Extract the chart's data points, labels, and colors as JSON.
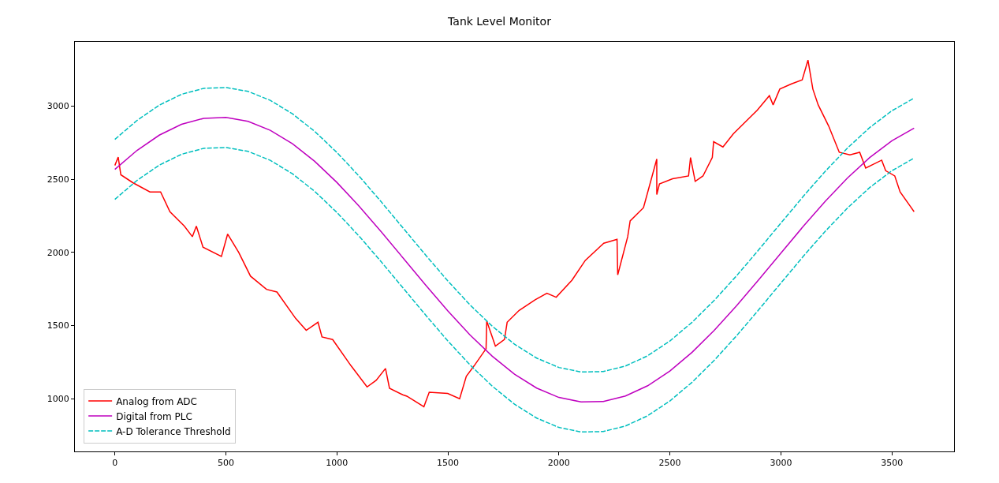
{
  "chart_data": {
    "type": "line",
    "title": "Tank Level Monitor",
    "xlim": [
      -180,
      3780
    ],
    "ylim": [
      640,
      3440
    ],
    "xticks": [
      0,
      500,
      1000,
      1500,
      2000,
      2500,
      3000,
      3500
    ],
    "yticks": [
      1000,
      1500,
      2000,
      2500,
      3000
    ],
    "grid": false,
    "legend": "bottom left",
    "marker": "none",
    "series": [
      {
        "name": "Analog from ADC",
        "color": "#ff0000",
        "line_style": "solid",
        "x": [
          0,
          15,
          27,
          81,
          158,
          206,
          248,
          313,
          349,
          367,
          397,
          480,
          508,
          558,
          611,
          683,
          730,
          814,
          862,
          915,
          933,
          981,
          1064,
          1136,
          1177,
          1219,
          1237,
          1297,
          1315,
          1392,
          1416,
          1499,
          1553,
          1583,
          1618,
          1672,
          1675,
          1714,
          1755,
          1767,
          1821,
          1893,
          1946,
          1988,
          2059,
          2119,
          2202,
          2262,
          2265,
          2310,
          2321,
          2381,
          2441,
          2441,
          2453,
          2512,
          2584,
          2593,
          2614,
          2649,
          2691,
          2697,
          2739,
          2786,
          2858,
          2894,
          2948,
          2965,
          2995,
          3048,
          3096,
          3122,
          3144,
          3168,
          3215,
          3263,
          3311,
          3355,
          3382,
          3454,
          3472,
          3513,
          3537,
          3579,
          3600
        ],
        "values": [
          2595,
          2652,
          2531,
          2477,
          2414,
          2414,
          2279,
          2180,
          2108,
          2180,
          2036,
          1973,
          2126,
          2000,
          1838,
          1748,
          1730,
          1550,
          1468,
          1523,
          1423,
          1405,
          1225,
          1081,
          1126,
          1207,
          1072,
          1027,
          1018,
          946,
          1045,
          1036,
          1000,
          1153,
          1225,
          1342,
          1531,
          1360,
          1405,
          1523,
          1604,
          1676,
          1721,
          1694,
          1811,
          1946,
          2063,
          2090,
          1847,
          2108,
          2216,
          2306,
          2639,
          2396,
          2469,
          2504,
          2523,
          2649,
          2486,
          2523,
          2649,
          2757,
          2721,
          2811,
          2919,
          2973,
          3072,
          3009,
          3117,
          3153,
          3180,
          3315,
          3117,
          3009,
          2865,
          2685,
          2667,
          2685,
          2577,
          2631,
          2559,
          2523,
          2414,
          2324,
          2279
        ]
      },
      {
        "name": "Digital from PLC",
        "color": "#bf00bf",
        "line_style": "solid",
        "x": [
          0,
          100,
          200,
          300,
          400,
          500,
          600,
          700,
          800,
          900,
          1000,
          1100,
          1200,
          1300,
          1400,
          1500,
          1600,
          1700,
          1800,
          1900,
          2000,
          2100,
          2200,
          2300,
          2400,
          2500,
          2600,
          2700,
          2800,
          2900,
          3000,
          3100,
          3200,
          3300,
          3400,
          3500,
          3600
        ],
        "values": [
          2568,
          2698,
          2802,
          2876,
          2917,
          2923,
          2896,
          2835,
          2743,
          2623,
          2479,
          2317,
          2141,
          1959,
          1777,
          1600,
          1436,
          1291,
          1168,
          1073,
          1009,
          978,
          981,
          1019,
          1089,
          1190,
          1318,
          1468,
          1635,
          1813,
          1996,
          2177,
          2350,
          2509,
          2649,
          2764,
          2850
        ]
      },
      {
        "name": "A-D Tolerance Threshold",
        "color": "#00bfbf",
        "line_style": "dashed",
        "x": [
          0,
          100,
          200,
          300,
          400,
          500,
          600,
          700,
          800,
          900,
          1000,
          1100,
          1200,
          1300,
          1400,
          1500,
          1600,
          1700,
          1800,
          1900,
          2000,
          2100,
          2200,
          2300,
          2400,
          2500,
          2600,
          2700,
          2800,
          2900,
          3000,
          3100,
          3200,
          3300,
          3400,
          3500,
          3600
        ],
        "values": [
          2773,
          2903,
          3007,
          3081,
          3122,
          3128,
          3101,
          3040,
          2948,
          2828,
          2684,
          2522,
          2346,
          2164,
          1982,
          1805,
          1641,
          1496,
          1373,
          1278,
          1214,
          1183,
          1186,
          1224,
          1294,
          1395,
          1523,
          1673,
          1840,
          2018,
          2201,
          2382,
          2555,
          2714,
          2854,
          2969,
          3055
        ]
      },
      {
        "color": "#00bfbf",
        "line_style": "dashed",
        "x": [
          0,
          100,
          200,
          300,
          400,
          500,
          600,
          700,
          800,
          900,
          1000,
          1100,
          1200,
          1300,
          1400,
          1500,
          1600,
          1700,
          1800,
          1900,
          2000,
          2100,
          2200,
          2300,
          2400,
          2500,
          2600,
          2700,
          2800,
          2900,
          3000,
          3100,
          3200,
          3300,
          3400,
          3500,
          3600
        ],
        "values": [
          2363,
          2493,
          2597,
          2671,
          2712,
          2718,
          2691,
          2630,
          2538,
          2418,
          2274,
          2112,
          1936,
          1754,
          1572,
          1395,
          1231,
          1086,
          963,
          868,
          804,
          773,
          776,
          814,
          884,
          985,
          1113,
          1263,
          1430,
          1608,
          1791,
          1972,
          2145,
          2304,
          2444,
          2559,
          2645
        ]
      }
    ]
  }
}
